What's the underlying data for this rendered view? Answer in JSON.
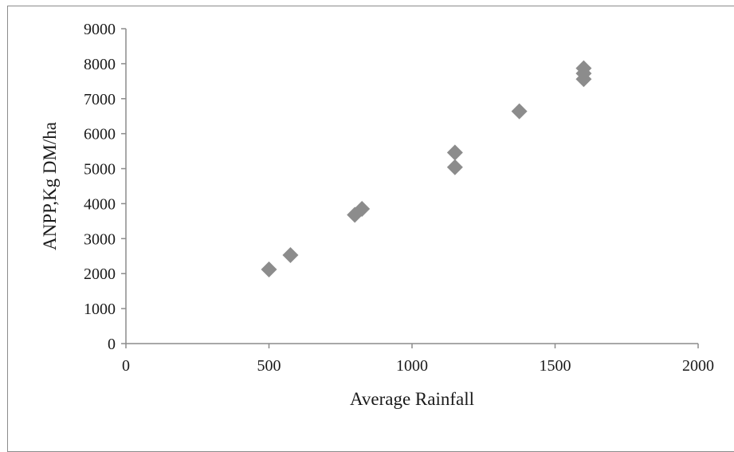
{
  "chart_data": {
    "type": "scatter",
    "title": "",
    "xlabel": "Average Rainfall",
    "ylabel": "ANPP,Kg  DM/ha",
    "xlim": [
      0,
      2000
    ],
    "ylim": [
      0,
      9000
    ],
    "xticks": [
      0,
      500,
      1000,
      1500,
      2000
    ],
    "yticks": [
      0,
      1000,
      2000,
      3000,
      4000,
      5000,
      6000,
      7000,
      8000,
      9000
    ],
    "grid": false,
    "legend": "none",
    "marker": "diamond",
    "marker_color": "#8c8c8c",
    "series": [
      {
        "points": [
          {
            "x": 500,
            "y": 2120
          },
          {
            "x": 575,
            "y": 2530
          },
          {
            "x": 800,
            "y": 3680
          },
          {
            "x": 825,
            "y": 3850
          },
          {
            "x": 1150,
            "y": 5040
          },
          {
            "x": 1150,
            "y": 5460
          },
          {
            "x": 1375,
            "y": 6640
          },
          {
            "x": 1600,
            "y": 7560
          },
          {
            "x": 1600,
            "y": 7720
          },
          {
            "x": 1600,
            "y": 7870
          }
        ]
      }
    ]
  }
}
